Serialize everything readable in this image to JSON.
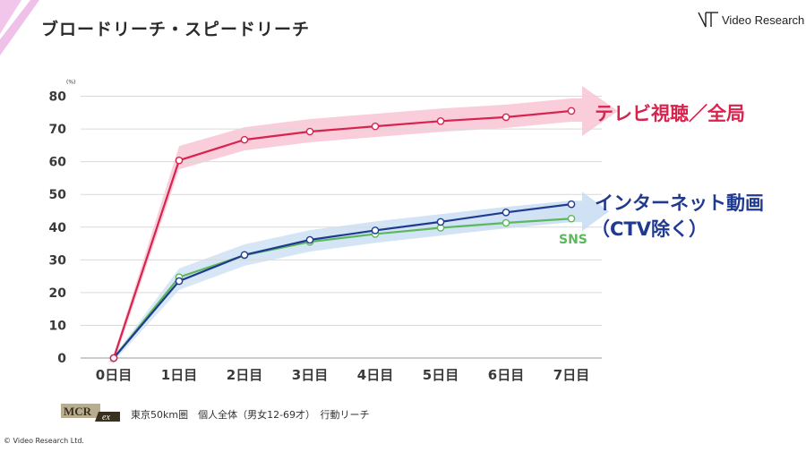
{
  "header": {
    "title": "ブロードリーチ・スピードリーチ",
    "logo_text": "Video Research"
  },
  "chart_data": {
    "type": "line",
    "title": "",
    "ylabel": "(%)",
    "xlabel": "",
    "categories": [
      "0日目",
      "1日目",
      "2日目",
      "3日目",
      "4日目",
      "5日目",
      "6日目",
      "7日目"
    ],
    "ylim": [
      0,
      80
    ],
    "yticks": [
      0,
      10,
      20,
      30,
      40,
      50,
      60,
      70,
      80
    ],
    "grid": true,
    "series": [
      {
        "name": "テレビ視聴／全局",
        "values": [
          0,
          60.4,
          66.7,
          69.2,
          70.8,
          72.4,
          73.6,
          75.5
        ],
        "color": "#d8234e"
      },
      {
        "name_line1": "インターネット動画",
        "name_line2": "（CTV除く）",
        "values": [
          0,
          23.5,
          31.5,
          36.1,
          39.0,
          41.6,
          44.5,
          47.0
        ],
        "color": "#1f3a8f"
      },
      {
        "name": "SNS",
        "values": [
          0,
          24.7,
          31.4,
          35.5,
          37.9,
          39.8,
          41.3,
          42.6
        ],
        "color": "#5cb85c"
      }
    ]
  },
  "footer": {
    "badge_text": "MCR",
    "badge_sub": "ex",
    "note": "東京50km圏　個人全体（男女12-69才）　行動リーチ",
    "copyright": "© Video Research Ltd."
  }
}
